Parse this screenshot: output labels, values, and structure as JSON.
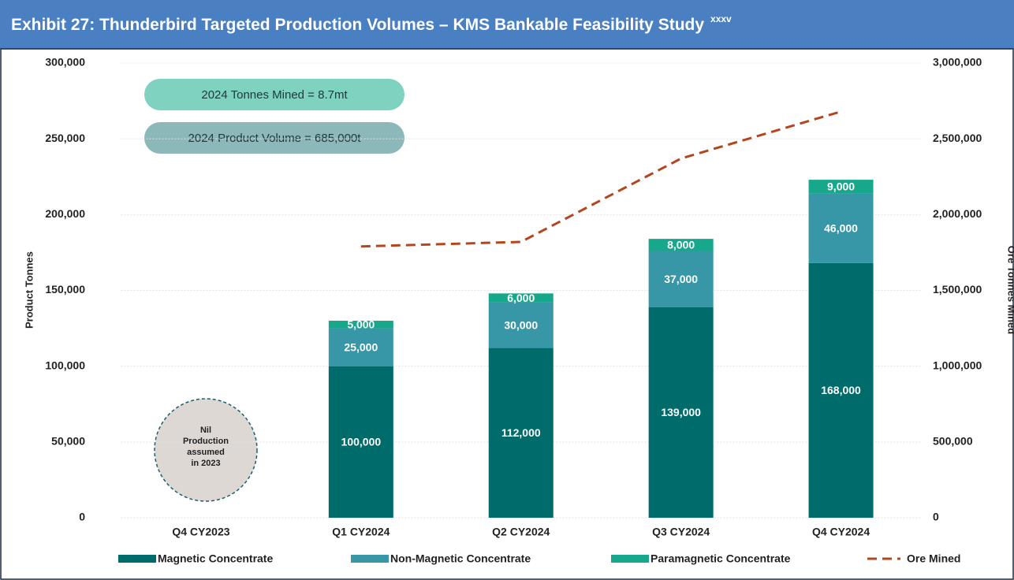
{
  "chart_data": {
    "type": "bar",
    "stacked": true,
    "title": "Exhibit 27: Thunderbird Targeted Production Volumes – KMS Bankable Feasibility Study",
    "title_superscript": "xxxv",
    "ylabel": "Product Tonnes",
    "y2label": "Ore Tonnes Mined",
    "categories": [
      "Q4 CY2023",
      "Q1 CY2024",
      "Q2 CY2024",
      "Q3 CY2024",
      "Q4 CY2024"
    ],
    "series": [
      {
        "name": "Magnetic Concentrate",
        "color": "#006b6b",
        "values": [
          null,
          100000,
          112000,
          139000,
          168000
        ],
        "value_labels": [
          null,
          "100,000",
          "112,000",
          "139,000",
          "168,000"
        ]
      },
      {
        "name": "Non-Magnetic Concentrate",
        "color": "#3797a6",
        "values": [
          null,
          25000,
          30000,
          37000,
          46000
        ],
        "value_labels": [
          null,
          "25,000",
          "30,000",
          "37,000",
          "46,000"
        ]
      },
      {
        "name": "Paramagnetic Concentrate",
        "color": "#17a88c",
        "values": [
          null,
          5000,
          6000,
          8000,
          9000
        ],
        "value_labels": [
          null,
          "5,000",
          "6,000",
          "8,000",
          "9,000"
        ]
      },
      {
        "name": "Ore Mined",
        "type": "line",
        "axis": "y2",
        "color": "#b4461f",
        "values": [
          null,
          1790000,
          1820000,
          2370000,
          2680000
        ]
      }
    ],
    "ylim": [
      0,
      300000
    ],
    "yticks": [
      0,
      {
        "value": 50000,
        "label": "50,000"
      },
      {
        "value": 100000,
        "label": "100,000"
      },
      {
        "value": 150000,
        "label": "150,000"
      },
      {
        "value": 200000,
        "label": "200,000"
      },
      {
        "value": 250000,
        "label": "250,000"
      },
      {
        "value": 300000,
        "label": "300,000"
      }
    ],
    "y2lim": [
      0,
      3000000
    ],
    "y2ticks": [
      0,
      {
        "value": 500000,
        "label": "500,000"
      },
      {
        "value": 1000000,
        "label": "1,000,000"
      },
      {
        "value": 1500000,
        "label": "1,500,000"
      },
      {
        "value": 2000000,
        "label": "2,000,000"
      },
      {
        "value": 2500000,
        "label": "2,500,000"
      },
      {
        "value": 3000000,
        "label": "3,000,000"
      }
    ],
    "grid": true,
    "legend": "bottom",
    "annotations": {
      "tonnes_mined": "2024 Tonnes Mined = 8.7mt",
      "product_volume": "2024 Product Volume = 685,000t",
      "nil_production": [
        "Nil",
        "Production",
        "assumed",
        "in 2023"
      ]
    }
  }
}
